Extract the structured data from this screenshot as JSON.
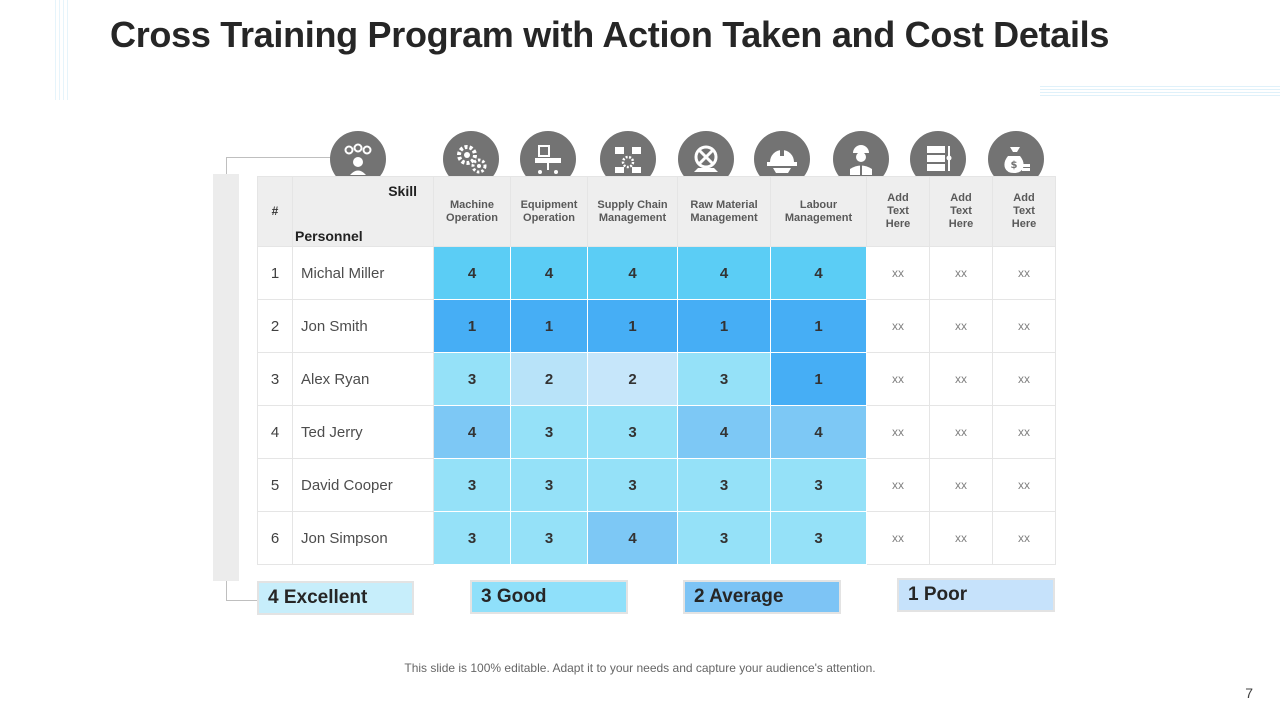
{
  "slide": {
    "title": "Cross Training Program with Action Taken and Cost Details",
    "footer_note": "This slide is 100% editable. Adapt it to your needs and capture your audience's attention.",
    "page_number": "7"
  },
  "icons": [
    {
      "name": "person-ideas-icon"
    },
    {
      "name": "gears-icon"
    },
    {
      "name": "equipment-icon"
    },
    {
      "name": "supply-chain-icon"
    },
    {
      "name": "raw-material-icon"
    },
    {
      "name": "hard-hat-icon"
    },
    {
      "name": "worker-icon"
    },
    {
      "name": "server-icon"
    },
    {
      "name": "money-bag-icon"
    }
  ],
  "table": {
    "hash_header": "#",
    "skill_label": "Skill",
    "personnel_label": "Personnel",
    "skill_columns": [
      {
        "line1": "Machine",
        "line2": "Operation"
      },
      {
        "line1": "Equipment",
        "line2": "Operation"
      },
      {
        "line1": "Supply Chain",
        "line2": "Management"
      },
      {
        "line1": "Raw Material",
        "line2": "Management"
      },
      {
        "line1": "Labour",
        "line2": "Management"
      }
    ],
    "extra_columns": [
      {
        "line1": "Add",
        "line2": "Text",
        "line3": "Here"
      },
      {
        "line1": "Add",
        "line2": "Text",
        "line3": "Here"
      },
      {
        "line1": "Add",
        "line2": "Text",
        "line3": "Here"
      }
    ],
    "rows": [
      {
        "num": "1",
        "name": "Michal Miller",
        "scores": [
          "4",
          "4",
          "4",
          "4",
          "4"
        ],
        "extras": [
          "xx",
          "xx",
          "xx"
        ]
      },
      {
        "num": "2",
        "name": "Jon Smith",
        "scores": [
          "1",
          "1",
          "1",
          "1",
          "1"
        ],
        "extras": [
          "xx",
          "xx",
          "xx"
        ]
      },
      {
        "num": "3",
        "name": "Alex Ryan",
        "scores": [
          "3",
          "2",
          "2",
          "3",
          "1"
        ],
        "extras": [
          "xx",
          "xx",
          "xx"
        ]
      },
      {
        "num": "4",
        "name": "Ted Jerry",
        "scores": [
          "4",
          "3",
          "3",
          "4",
          "4"
        ],
        "extras": [
          "xx",
          "xx",
          "xx"
        ]
      },
      {
        "num": "5",
        "name": "David Cooper",
        "scores": [
          "3",
          "3",
          "3",
          "3",
          "3"
        ],
        "extras": [
          "xx",
          "xx",
          "xx"
        ]
      },
      {
        "num": "6",
        "name": "Jon Simpson",
        "scores": [
          "3",
          "3",
          "4",
          "3",
          "3"
        ],
        "extras": [
          "xx",
          "xx",
          "xx"
        ]
      }
    ],
    "cell_colors": [
      [
        "#5bcdf5",
        "#5bcdf5",
        "#5bcdf5",
        "#5bcdf5",
        "#5bcdf5"
      ],
      [
        "#46aef5",
        "#46aef5",
        "#46aef5",
        "#46aef5",
        "#46aef5"
      ],
      [
        "#95e1f8",
        "#b8e3f9",
        "#c6e6fa",
        "#95e1f8",
        "#46aef5"
      ],
      [
        "#7dc8f5",
        "#95e1f8",
        "#95e1f8",
        "#7dc8f5",
        "#7dc8f5"
      ],
      [
        "#95e1f8",
        "#95e1f8",
        "#95e1f8",
        "#95e1f8",
        "#95e1f8"
      ],
      [
        "#95e1f8",
        "#95e1f8",
        "#7dc8f5",
        "#95e1f8",
        "#95e1f8"
      ]
    ]
  },
  "legend": [
    {
      "label": "4  Excellent",
      "color": "#c7eefb"
    },
    {
      "label": "3  Good",
      "color": "#8fe0fa"
    },
    {
      "label": "2 Average",
      "color": "#7dc4f5"
    },
    {
      "label": "1  Poor",
      "color": "#c6e2fb"
    }
  ]
}
